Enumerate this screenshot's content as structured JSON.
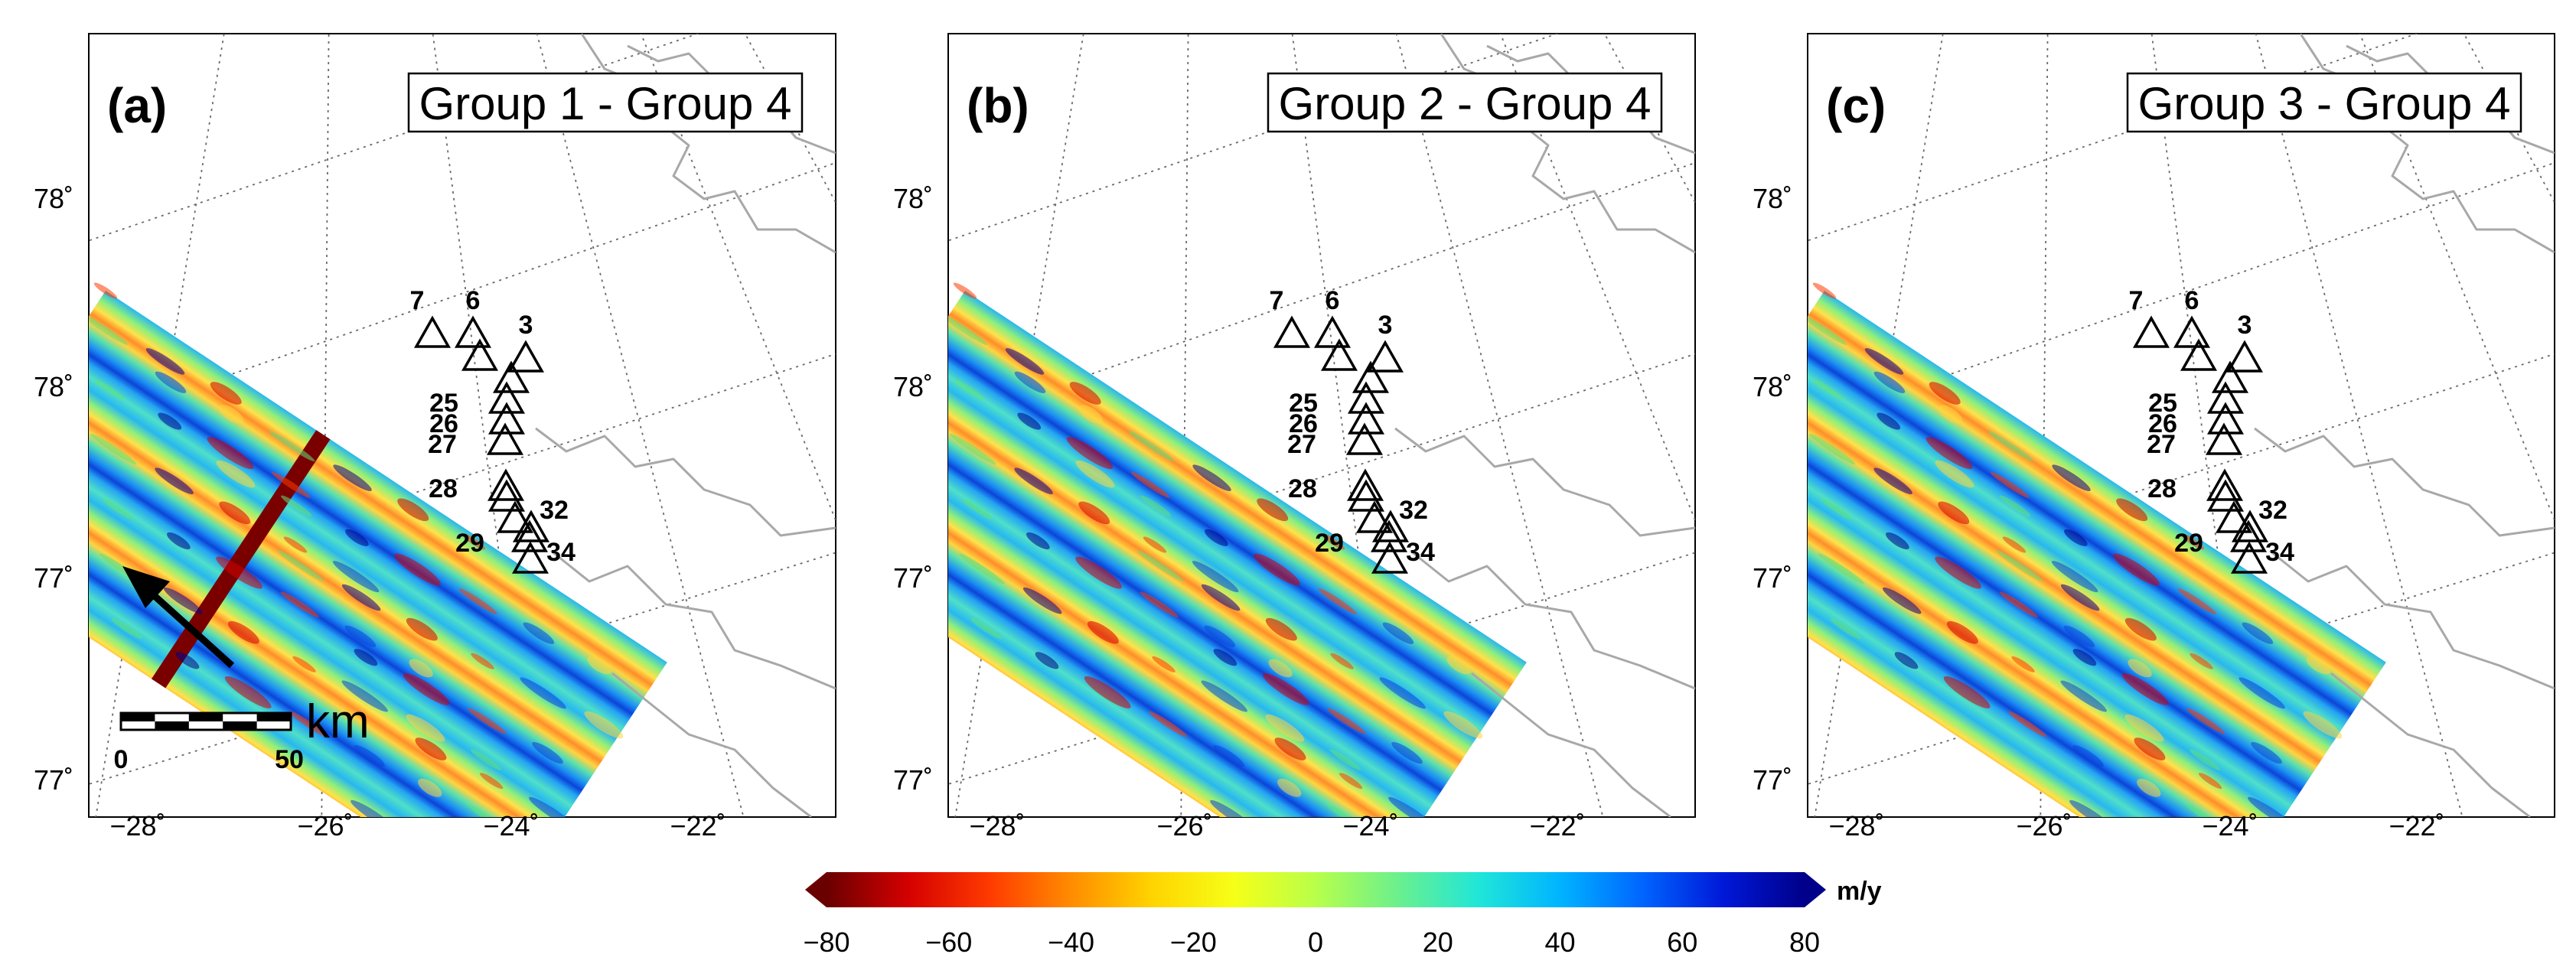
{
  "panels": [
    {
      "letter": "(a)",
      "title": "Group 1 - Group 4"
    },
    {
      "letter": "(b)",
      "title": "Group 2 - Group 4"
    },
    {
      "letter": "(c)",
      "title": "Group 3 - Group 4"
    }
  ],
  "lat_labels": [
    "78˚",
    "78˚",
    "77˚",
    "77˚"
  ],
  "lon_labels": [
    "−28˚",
    "−26˚",
    "−24˚",
    "−22˚"
  ],
  "stations": [
    "7",
    "6",
    "3",
    "25",
    "26",
    "27",
    "28",
    "32",
    "29",
    "34"
  ],
  "colorbar": {
    "unit": "m/y",
    "min": -80,
    "max": 80,
    "tick_labels": [
      "−80",
      "−60",
      "−40",
      "−20",
      "0",
      "20",
      "40",
      "60",
      "80"
    ],
    "colors": [
      "#6a0000",
      "#d40000",
      "#ff3a00",
      "#ff8c00",
      "#ffd400",
      "#f6ff18",
      "#b8ff4a",
      "#6cf08c",
      "#20e6d8",
      "#00b4ff",
      "#0066ff",
      "#0018d8",
      "#00008a"
    ]
  },
  "scale_bar": {
    "start": "0",
    "end": "50",
    "unit": "km"
  },
  "north_arrow": {
    "icon": "north-arrow-icon"
  }
}
